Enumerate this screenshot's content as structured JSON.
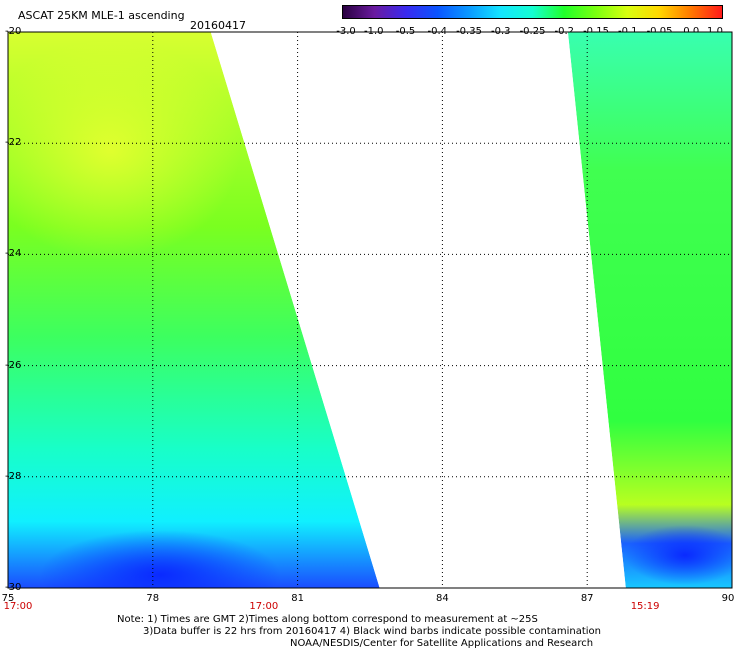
{
  "header": {
    "title": "ASCAT 25KM MLE-1 ascending",
    "date": "20160417"
  },
  "colorbar": {
    "labels": [
      "-3.0",
      "-1.0",
      "-0.5",
      "-0.4",
      "-0.35",
      "-0.3",
      "-0.25",
      "-0.2",
      "-0.15",
      "-0.1",
      "-0.05",
      "0.0",
      "1.0"
    ],
    "stops": [
      "#2a0040",
      "#6a1aa0",
      "#3a2af0",
      "#0a55ff",
      "#0a9aff",
      "#14e6ff",
      "#14ffd2",
      "#20ff2a",
      "#7aff10",
      "#d8ff10",
      "#ffd800",
      "#ff7a00",
      "#ff1a1a"
    ]
  },
  "map": {
    "lon_range": [
      75,
      90
    ],
    "lat_range": [
      -20,
      -30
    ],
    "lon_ticks": [
      "75",
      "78",
      "81",
      "84",
      "87",
      "90"
    ],
    "lat_ticks": [
      "-20",
      "-22",
      "-24",
      "-26",
      "-28",
      "-30"
    ],
    "time_labels": [
      {
        "text": "17:00",
        "lon": 75
      },
      {
        "text": "17:00",
        "lon": 80.3
      },
      {
        "text": "15:19",
        "lon": 88.2
      }
    ],
    "swaths": [
      {
        "name": "west-swath",
        "lat_top": -20,
        "lat_bottom": -30,
        "west_lon": 75,
        "east_lon_top": 79.2,
        "east_lon_bottom": 82.7
      },
      {
        "name": "east-swath",
        "lat_top": -20,
        "lat_bottom": -30,
        "west_lon_top": 86.6,
        "west_lon_bottom": 87.8,
        "east_lon": 90
      }
    ]
  },
  "notes": {
    "line1": "Note: 1) Times are GMT 2)Times along bottom correspond to measurement at ~25S",
    "line2": "3)Data buffer is 22 hrs from 20160417 4) Black wind barbs indicate possible contamination",
    "line3": "NOAA/NESDIS/Center for Satellite Applications and Research"
  }
}
